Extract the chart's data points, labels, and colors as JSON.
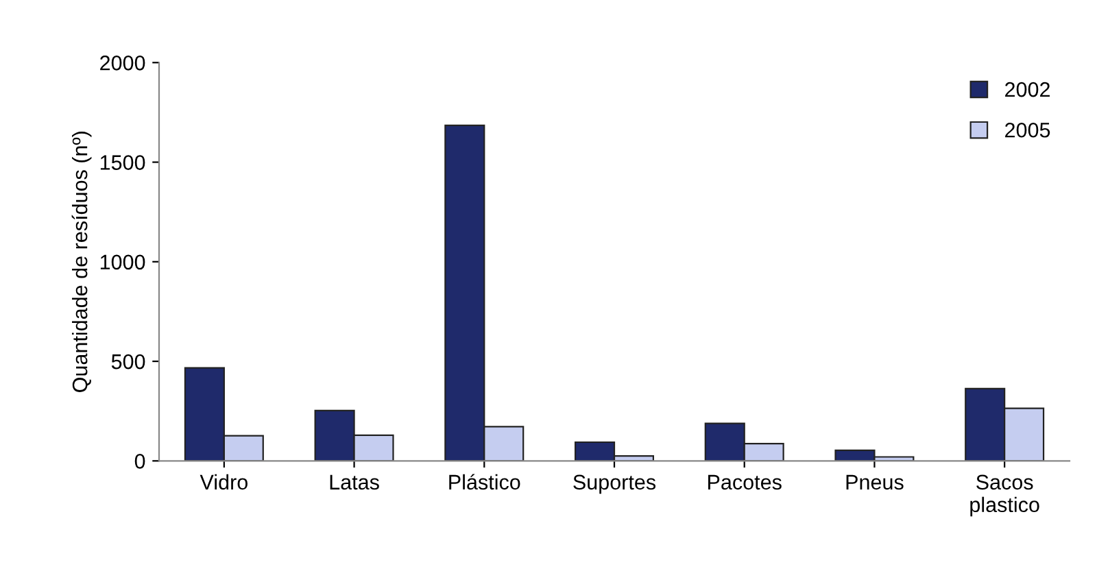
{
  "chart_data": {
    "type": "bar",
    "ylabel": "Quantidade de resíduos (nº)",
    "categories": [
      "Vidro",
      "Latas",
      "Plástico",
      "Suportes",
      "Pacotes",
      "Pneus",
      "Sacos\nplastico"
    ],
    "series": [
      {
        "name": "2002",
        "color": "#1f2a6b",
        "values": [
          467,
          253,
          1685,
          94,
          188,
          53,
          363
        ]
      },
      {
        "name": "2005",
        "color": "#c5cdf0",
        "values": [
          126,
          129,
          172,
          25,
          87,
          20,
          264
        ]
      }
    ],
    "ylim": [
      0,
      2000
    ],
    "yticks": [
      0,
      500,
      1000,
      1500,
      2000
    ],
    "grid": false,
    "legend": "top right"
  }
}
